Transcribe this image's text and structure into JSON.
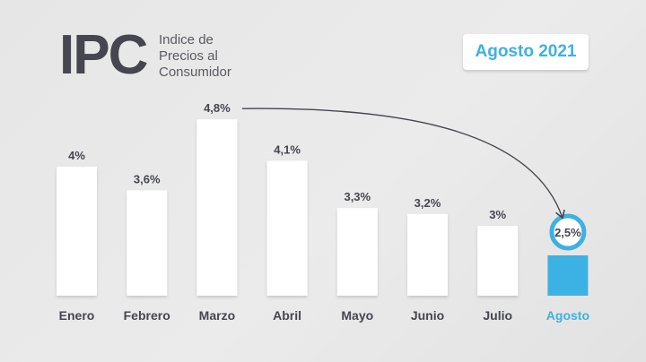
{
  "header": {
    "logo": "IPC",
    "subtitle_lines": [
      "Indice de",
      "Precios al",
      "Consumidor"
    ],
    "period": "Agosto 2021"
  },
  "colors": {
    "bar": "#ffffff",
    "highlight": "#3cb1e3",
    "text": "#45464f"
  },
  "chart_data": {
    "type": "bar",
    "categories": [
      "Enero",
      "Febrero",
      "Marzo",
      "Abril",
      "Mayo",
      "Junio",
      "Julio",
      "Agosto"
    ],
    "values": [
      4,
      3.6,
      4.8,
      4.1,
      3.3,
      3.2,
      3,
      2.5
    ],
    "labels": [
      "4%",
      "3,6%",
      "4,8%",
      "4,1%",
      "3,3%",
      "3,2%",
      "3%",
      "2,5%"
    ],
    "highlight_index": 7,
    "annotation": "arrow from Marzo to Agosto"
  }
}
